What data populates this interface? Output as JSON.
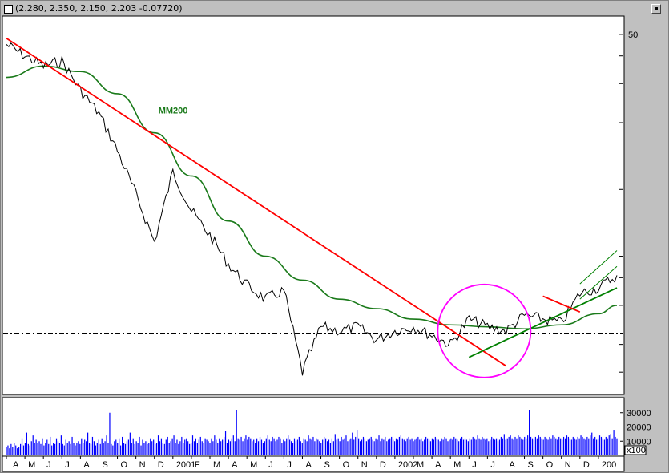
{
  "window": {
    "title": "(2.280, 2.350, 2.150, 2.203 -0.07720)"
  },
  "chart_data": {
    "type": "line",
    "title": "",
    "xlabel": "",
    "ylabel": "",
    "log_scale": true,
    "ylim": [
      1.2,
      60
    ],
    "y_ticks": [
      "50"
    ],
    "x_tick_labels": [
      "A",
      "M",
      "J",
      "J",
      "A",
      "S",
      "O",
      "N",
      "D",
      "2001",
      "F",
      "M",
      "A",
      "M",
      "J",
      "J",
      "A",
      "S",
      "O",
      "N",
      "D",
      "2002",
      "M",
      "A",
      "M",
      "J",
      "J",
      "A",
      "S",
      "O",
      "N",
      "D",
      "200"
    ],
    "price_series": {
      "name": "",
      "x": [
        "2000-04",
        "2000-05",
        "2000-06",
        "2000-07",
        "2000-08",
        "2000-09",
        "2000-10",
        "2000-11",
        "2000-12",
        "2001-01",
        "2001-02",
        "2001-03",
        "2001-04",
        "2001-05",
        "2001-06",
        "2001-07",
        "2001-08",
        "2001-09",
        "2001-10",
        "2001-11",
        "2001-12",
        "2002-01",
        "2002-02",
        "2002-03",
        "2002-04",
        "2002-05",
        "2002-06",
        "2002-07",
        "2002-08",
        "2002-09",
        "2002-10",
        "2002-11",
        "2002-12",
        "2003-01"
      ],
      "values": [
        45.0,
        40.0,
        36.0,
        38.0,
        28.0,
        22.0,
        15.0,
        9.5,
        5.8,
        12.0,
        8.0,
        6.2,
        4.6,
        3.7,
        3.2,
        3.5,
        1.5,
        2.4,
        2.3,
        2.4,
        2.1,
        2.3,
        2.4,
        2.2,
        2.0,
        2.6,
        2.4,
        2.3,
        2.7,
        2.6,
        2.5,
        3.4,
        3.6,
        4.1
      ]
    },
    "mm200": {
      "name": "MM200",
      "x": [
        "2000-04",
        "2000-06",
        "2000-08",
        "2000-10",
        "2000-12",
        "2001-02",
        "2001-04",
        "2001-06",
        "2001-08",
        "2001-10",
        "2001-12",
        "2002-02",
        "2002-04",
        "2002-06",
        "2002-08",
        "2002-10",
        "2002-12",
        "2003-01"
      ],
      "values": [
        32.0,
        36.0,
        34.0,
        27.0,
        18.0,
        11.5,
        7.2,
        5.0,
        3.9,
        3.2,
        2.9,
        2.6,
        2.45,
        2.4,
        2.35,
        2.45,
        2.75,
        3.0
      ]
    },
    "reference_level": 2.25,
    "trendlines": [
      {
        "color": "#ff0000",
        "from": [
          "2000-04",
          48.0
        ],
        "to": [
          "2002-07",
          1.6
        ]
      },
      {
        "color": "#008000",
        "from": [
          "2002-05",
          1.75
        ],
        "to": [
          "2003-01",
          3.6
        ]
      },
      {
        "color": "#ff0000",
        "from": [
          "2002-09",
          3.3
        ],
        "to": [
          "2002-11",
          2.8
        ]
      }
    ],
    "channel": {
      "from": [
        "2002-11",
        3.75
      ],
      "to": [
        "2003-01",
        5.3
      ],
      "lower_from": 3.2,
      "lower_to": 4.5
    },
    "highlight_circle": {
      "color": "#ff00ff",
      "center": [
        "2002-06",
        2.3
      ]
    },
    "volume": {
      "unit": "x100",
      "y_ticks": [
        "30000",
        "20000",
        "10000"
      ],
      "ylim": [
        0,
        40000
      ],
      "values": [
        6000,
        7000,
        5000,
        8000,
        6000,
        9000,
        7000,
        5000,
        6000,
        8000,
        12000,
        7000,
        9000,
        16000,
        8000,
        7000,
        10000,
        14000,
        9000,
        11000,
        9000,
        10000,
        8000,
        12000,
        7000,
        9000,
        11000,
        8000,
        13000,
        7000,
        9000,
        8000,
        12000,
        10000,
        9000,
        14000,
        8000,
        7000,
        11000,
        9000,
        10000,
        8000,
        13000,
        9000,
        7000,
        9000,
        10000,
        8000,
        12000,
        9000,
        11000,
        10000,
        16000,
        9000,
        8000,
        13000,
        10000,
        7000,
        9000,
        11000,
        8000,
        12000,
        9000,
        10000,
        14000,
        9000,
        30000,
        8000,
        7000,
        10000,
        11000,
        9000,
        12000,
        7000,
        13000,
        9000,
        8000,
        10000,
        11000,
        16000,
        9000,
        12000,
        8000,
        10000,
        9000,
        13000,
        7000,
        11000,
        9000,
        10000,
        8000,
        9000,
        12000,
        10000,
        11000,
        8000,
        9000,
        14000,
        10000,
        12000,
        9000,
        8000,
        11000,
        13000,
        9000,
        10000,
        12000,
        14000,
        9000,
        11000,
        8000,
        10000,
        13000,
        9000,
        11000,
        12000,
        10000,
        8000,
        9000,
        14000,
        10000,
        12000,
        9000,
        11000,
        13000,
        10000,
        9000,
        12000,
        11000,
        10000,
        9000,
        12000,
        10000,
        14000,
        11000,
        9000,
        12000,
        10000,
        11000,
        13000,
        17000,
        9000,
        11000,
        10000,
        12000,
        14000,
        10000,
        32000,
        12000,
        11000,
        13000,
        10000,
        12000,
        14000,
        11000,
        13000,
        12000,
        10000,
        11000,
        9000,
        12000,
        10000,
        13000,
        11000,
        9000,
        10000,
        12000,
        14000,
        11000,
        10000,
        13000,
        12000,
        10000,
        11000,
        13000,
        12000,
        9000,
        11000,
        10000,
        12000,
        14000,
        11000,
        10000,
        9000,
        12000,
        10000,
        11000,
        13000,
        10000,
        9000,
        12000,
        11000,
        10000,
        14000,
        12000,
        11000,
        13000,
        10000,
        12000,
        11000,
        10000,
        9000,
        11000,
        13000,
        12000,
        10000,
        11000,
        9000,
        12000,
        10000,
        15000,
        11000,
        12000,
        10000,
        13000,
        11000,
        12000,
        14000,
        10000,
        11000,
        12000,
        16000,
        11000,
        13000,
        18000,
        12000,
        10000,
        11000,
        13000,
        12000,
        10000,
        11000,
        12000,
        13000,
        11000,
        10000,
        12000,
        11000,
        14000,
        10000,
        12000,
        11000,
        13000,
        10000,
        11000,
        12000,
        13000,
        11000,
        10000,
        12000,
        11000,
        13000,
        14000,
        12000,
        11000,
        10000,
        12000,
        13000,
        11000,
        12000,
        10000,
        11000,
        12000,
        13000,
        11000,
        12000,
        10000,
        11000,
        13000,
        12000,
        11000,
        10000,
        12000,
        11000,
        13000,
        12000,
        11000,
        10000,
        12000,
        11000,
        13000,
        12000,
        10000,
        11000,
        12000,
        11000,
        13000,
        12000,
        11000,
        10000,
        12000,
        13000,
        11000,
        12000,
        11000,
        10000,
        12000,
        11000,
        13000,
        12000,
        11000,
        14000,
        12000,
        11000,
        13000,
        12000,
        11000,
        12000,
        10000,
        11000,
        13000,
        12000,
        11000,
        12000,
        10000,
        11000,
        13000,
        12000,
        15000,
        11000,
        12000,
        13000,
        14000,
        12000,
        11000,
        13000,
        12000,
        14000,
        13000,
        12000,
        11000,
        13000,
        12000,
        14000,
        32000,
        13000,
        12000,
        11000,
        13000,
        12000,
        14000,
        13000,
        12000,
        11000,
        13000,
        12000,
        11000,
        13000,
        12000,
        14000,
        13000,
        12000,
        11000,
        13000,
        12000,
        11000,
        13000,
        12000,
        14000,
        13000,
        12000,
        11000,
        13000,
        12000,
        11000,
        13000,
        12000,
        14000,
        13000,
        12000,
        11000,
        13000,
        12000,
        14000,
        16000,
        12000,
        13000,
        11000,
        12000,
        14000,
        13000,
        12000,
        11000,
        13000,
        12000,
        14000,
        15000,
        12000,
        18000,
        13000,
        12000
      ]
    }
  }
}
